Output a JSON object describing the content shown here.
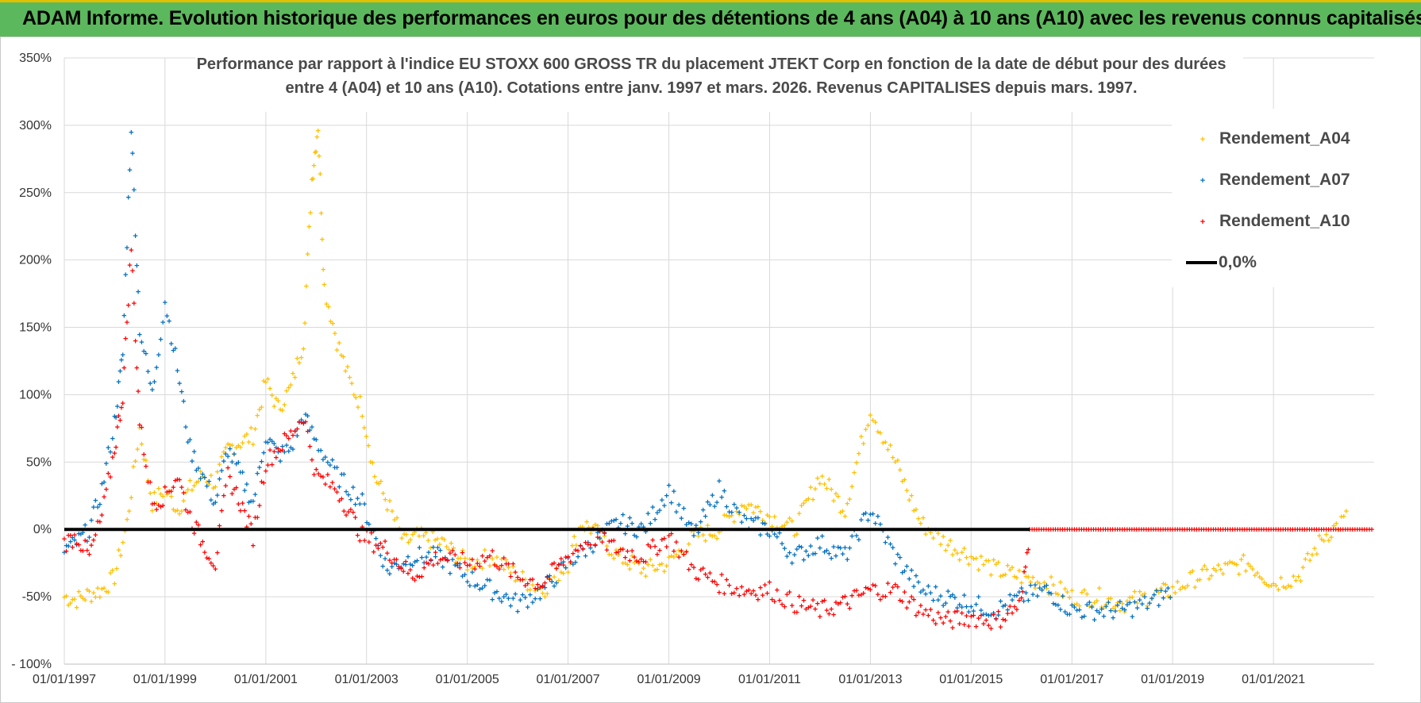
{
  "banner": {
    "title": "ADAM Informe. Evolution historique des performances en euros pour des détentions de 4 ans (A04) à 10 ans (A10) avec les revenus connus capitalisés"
  },
  "chart_data": {
    "type": "scatter",
    "title_line1": "Performance par rapport à l'indice EU STOXX 600 GROSS TR  du placement JTEKT Corp en fonction de la date de début pour des durées",
    "title_line2": "entre 4 (A04) et 10 ans (A10).  Cotations entre janv. 1997 et mars. 2026.  Revenus CAPITALISES depuis mars. 1997.",
    "xlabel": "",
    "ylabel": "",
    "xlim": [
      "1997-01-01",
      "2023-01-01"
    ],
    "ylim": [
      -100,
      350
    ],
    "y_ticks": [
      -100,
      -50,
      0,
      50,
      100,
      150,
      200,
      250,
      300,
      350
    ],
    "y_tick_labels": [
      "- 100%",
      "-50%",
      "0%",
      "50%",
      "100%",
      "150%",
      "200%",
      "250%",
      "300%",
      "350%"
    ],
    "x_tick_labels": [
      "01/01/1997",
      "01/01/1999",
      "01/01/2001",
      "01/01/2003",
      "01/01/2005",
      "01/01/2007",
      "01/01/2009",
      "01/01/2011",
      "01/01/2013",
      "01/01/2015",
      "01/01/2017",
      "01/01/2019",
      "01/01/2021"
    ],
    "grid": true,
    "legend_position": "top-right",
    "series": [
      {
        "name": "Rendement_A04",
        "color": "#ffc000",
        "marker": "plus",
        "points": [
          [
            "1997-01-01",
            -50
          ],
          [
            "1997-04-01",
            -52
          ],
          [
            "1997-07-01",
            -48
          ],
          [
            "1997-10-01",
            -45
          ],
          [
            "1998-01-01",
            -35
          ],
          [
            "1998-04-01",
            5
          ],
          [
            "1998-07-01",
            75
          ],
          [
            "1998-10-01",
            20
          ],
          [
            "1999-01-01",
            30
          ],
          [
            "1999-04-01",
            15
          ],
          [
            "1999-07-01",
            30
          ],
          [
            "1999-10-01",
            40
          ],
          [
            "2000-01-01",
            35
          ],
          [
            "2000-04-01",
            60
          ],
          [
            "2000-07-01",
            65
          ],
          [
            "2000-10-01",
            70
          ],
          [
            "2001-01-01",
            110
          ],
          [
            "2001-04-01",
            90
          ],
          [
            "2001-07-01",
            105
          ],
          [
            "2001-10-01",
            140
          ],
          [
            "2001-12-01",
            260
          ],
          [
            "2002-01-15",
            300
          ],
          [
            "2002-03-01",
            180
          ],
          [
            "2002-06-01",
            140
          ],
          [
            "2002-09-01",
            110
          ],
          [
            "2002-12-01",
            90
          ],
          [
            "2003-03-01",
            40
          ],
          [
            "2003-06-01",
            20
          ],
          [
            "2003-10-01",
            -10
          ],
          [
            "2004-01-01",
            -5
          ],
          [
            "2004-07-01",
            -10
          ],
          [
            "2005-01-01",
            -25
          ],
          [
            "2005-07-01",
            -20
          ],
          [
            "2006-01-01",
            -35
          ],
          [
            "2006-07-01",
            -45
          ],
          [
            "2007-01-01",
            -25
          ],
          [
            "2007-04-01",
            5
          ],
          [
            "2007-07-01",
            0
          ],
          [
            "2008-01-01",
            -20
          ],
          [
            "2008-07-01",
            -30
          ],
          [
            "2009-01-01",
            -25
          ],
          [
            "2009-07-01",
            -5
          ],
          [
            "2010-01-01",
            0
          ],
          [
            "2010-07-01",
            20
          ],
          [
            "2011-01-01",
            10
          ],
          [
            "2011-07-01",
            0
          ],
          [
            "2012-01-01",
            40
          ],
          [
            "2012-07-01",
            15
          ],
          [
            "2013-01-01",
            90
          ],
          [
            "2013-07-01",
            50
          ],
          [
            "2014-01-01",
            5
          ],
          [
            "2014-07-01",
            -10
          ],
          [
            "2015-01-01",
            -20
          ],
          [
            "2015-07-01",
            -30
          ],
          [
            "2016-01-01",
            -35
          ],
          [
            "2016-07-01",
            -40
          ],
          [
            "2017-01-01",
            -50
          ],
          [
            "2017-07-01",
            -50
          ],
          [
            "2018-01-01",
            -55
          ],
          [
            "2018-07-01",
            -50
          ],
          [
            "2019-01-01",
            -45
          ],
          [
            "2019-07-01",
            -35
          ],
          [
            "2020-01-01",
            -30
          ],
          [
            "2020-07-01",
            -25
          ],
          [
            "2021-01-01",
            -40
          ],
          [
            "2021-07-01",
            -35
          ],
          [
            "2022-01-01",
            -5
          ],
          [
            "2022-07-01",
            10
          ]
        ]
      },
      {
        "name": "Rendement_A07",
        "color": "#0070c0",
        "marker": "plus",
        "points": [
          [
            "1997-01-01",
            -15
          ],
          [
            "1997-04-01",
            -10
          ],
          [
            "1997-07-01",
            0
          ],
          [
            "1997-10-01",
            30
          ],
          [
            "1998-01-01",
            80
          ],
          [
            "1998-03-01",
            130
          ],
          [
            "1998-05-01",
            300
          ],
          [
            "1998-07-01",
            150
          ],
          [
            "1998-10-01",
            100
          ],
          [
            "1999-01-01",
            170
          ],
          [
            "1999-04-01",
            120
          ],
          [
            "1999-07-01",
            60
          ],
          [
            "1999-10-01",
            40
          ],
          [
            "2000-01-01",
            20
          ],
          [
            "2000-04-01",
            60
          ],
          [
            "2000-07-01",
            40
          ],
          [
            "2000-10-01",
            20
          ],
          [
            "2001-01-01",
            70
          ],
          [
            "2001-04-01",
            55
          ],
          [
            "2001-07-01",
            60
          ],
          [
            "2001-10-01",
            85
          ],
          [
            "2002-01-01",
            65
          ],
          [
            "2002-06-01",
            40
          ],
          [
            "2002-12-01",
            20
          ],
          [
            "2003-06-01",
            -30
          ],
          [
            "2003-12-01",
            -20
          ],
          [
            "2004-06-01",
            -20
          ],
          [
            "2005-01-01",
            -35
          ],
          [
            "2005-07-01",
            -45
          ],
          [
            "2006-01-01",
            -55
          ],
          [
            "2006-07-01",
            -45
          ],
          [
            "2007-01-01",
            -25
          ],
          [
            "2007-07-01",
            -10
          ],
          [
            "2008-01-01",
            5
          ],
          [
            "2008-07-01",
            0
          ],
          [
            "2009-01-01",
            30
          ],
          [
            "2009-07-01",
            -5
          ],
          [
            "2010-01-01",
            30
          ],
          [
            "2010-07-01",
            5
          ],
          [
            "2011-01-01",
            0
          ],
          [
            "2011-07-01",
            -20
          ],
          [
            "2012-01-01",
            -10
          ],
          [
            "2012-07-01",
            -20
          ],
          [
            "2013-01-01",
            15
          ],
          [
            "2013-07-01",
            -20
          ],
          [
            "2014-01-01",
            -45
          ],
          [
            "2014-07-01",
            -50
          ],
          [
            "2015-01-01",
            -55
          ],
          [
            "2015-07-01",
            -60
          ],
          [
            "2016-01-01",
            -50
          ],
          [
            "2016-07-01",
            -45
          ],
          [
            "2017-01-01",
            -60
          ],
          [
            "2017-07-01",
            -60
          ],
          [
            "2018-01-01",
            -60
          ],
          [
            "2018-07-01",
            -55
          ],
          [
            "2019-01-01",
            -45
          ]
        ]
      },
      {
        "name": "Rendement_A10",
        "color": "#ff0000",
        "marker": "plus",
        "points": [
          [
            "1997-01-01",
            -10
          ],
          [
            "1997-04-01",
            -5
          ],
          [
            "1997-07-01",
            -20
          ],
          [
            "1997-10-01",
            10
          ],
          [
            "1998-01-01",
            60
          ],
          [
            "1998-03-01",
            100
          ],
          [
            "1998-05-01",
            210
          ],
          [
            "1998-07-01",
            80
          ],
          [
            "1998-10-01",
            20
          ],
          [
            "1999-01-01",
            25
          ],
          [
            "1999-04-01",
            40
          ],
          [
            "1999-07-01",
            10
          ],
          [
            "1999-10-01",
            -10
          ],
          [
            "2000-01-01",
            -25
          ],
          [
            "2000-04-01",
            40
          ],
          [
            "2000-07-01",
            20
          ],
          [
            "2000-10-01",
            -5
          ],
          [
            "2001-01-01",
            50
          ],
          [
            "2001-04-01",
            60
          ],
          [
            "2001-07-01",
            70
          ],
          [
            "2001-10-01",
            85
          ],
          [
            "2002-01-01",
            40
          ],
          [
            "2002-06-01",
            30
          ],
          [
            "2002-12-01",
            -5
          ],
          [
            "2003-06-01",
            -15
          ],
          [
            "2003-12-01",
            -35
          ],
          [
            "2004-06-01",
            -20
          ],
          [
            "2005-01-01",
            -25
          ],
          [
            "2005-07-01",
            -20
          ],
          [
            "2006-01-01",
            -35
          ],
          [
            "2006-07-01",
            -40
          ],
          [
            "2007-01-01",
            -20
          ],
          [
            "2007-07-01",
            -5
          ],
          [
            "2008-01-01",
            -15
          ],
          [
            "2008-07-01",
            -20
          ],
          [
            "2009-01-01",
            -5
          ],
          [
            "2009-07-01",
            -30
          ],
          [
            "2010-01-01",
            -40
          ],
          [
            "2010-07-01",
            -45
          ],
          [
            "2011-01-01",
            -45
          ],
          [
            "2011-07-01",
            -55
          ],
          [
            "2012-01-01",
            -60
          ],
          [
            "2012-07-01",
            -55
          ],
          [
            "2013-01-01",
            -45
          ],
          [
            "2013-07-01",
            -45
          ],
          [
            "2014-01-01",
            -60
          ],
          [
            "2014-07-01",
            -68
          ],
          [
            "2015-01-01",
            -65
          ],
          [
            "2015-07-01",
            -68
          ],
          [
            "2016-01-01",
            -55
          ],
          [
            "2016-03-01",
            0
          ],
          [
            "2017-01-01",
            0
          ],
          [
            "2018-01-01",
            0
          ],
          [
            "2019-01-01",
            0
          ],
          [
            "2020-01-01",
            0
          ],
          [
            "2021-01-01",
            0
          ],
          [
            "2022-01-01",
            0
          ],
          [
            "2023-01-01",
            0
          ]
        ]
      },
      {
        "name": "0,0%",
        "color": "#000000",
        "marker": "line",
        "points": [
          [
            "1997-01-01",
            0
          ],
          [
            "2016-03-01",
            0
          ]
        ]
      }
    ]
  }
}
